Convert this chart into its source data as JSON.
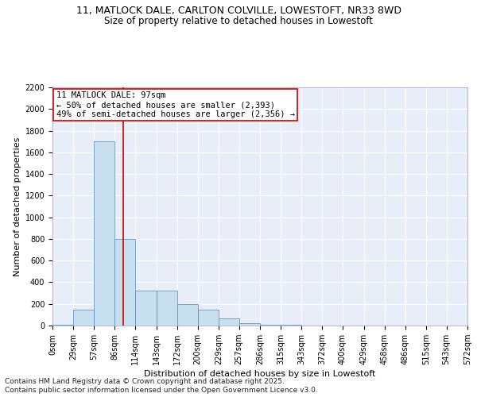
{
  "title": "11, MATLOCK DALE, CARLTON COLVILLE, LOWESTOFT, NR33 8WD",
  "subtitle": "Size of property relative to detached houses in Lowestoft",
  "xlabel": "Distribution of detached houses by size in Lowestoft",
  "ylabel": "Number of detached properties",
  "footer1": "Contains HM Land Registry data © Crown copyright and database right 2025.",
  "footer2": "Contains public sector information licensed under the Open Government Licence v3.0.",
  "bar_heights": [
    5,
    150,
    1700,
    800,
    320,
    320,
    200,
    150,
    65,
    25,
    10,
    5,
    3,
    2,
    1,
    0,
    0,
    0,
    0,
    0
  ],
  "bin_labels": [
    "0sqm",
    "29sqm",
    "57sqm",
    "86sqm",
    "114sqm",
    "143sqm",
    "172sqm",
    "200sqm",
    "229sqm",
    "257sqm",
    "286sqm",
    "315sqm",
    "343sqm",
    "372sqm",
    "400sqm",
    "429sqm",
    "458sqm",
    "486sqm",
    "515sqm",
    "543sqm",
    "572sqm"
  ],
  "bin_edges": [
    0,
    29,
    57,
    86,
    114,
    143,
    172,
    200,
    229,
    257,
    286,
    315,
    343,
    372,
    400,
    429,
    458,
    486,
    515,
    543,
    572
  ],
  "ylim": [
    0,
    2200
  ],
  "property_value": 97,
  "property_label": "11 MATLOCK DALE: 97sqm",
  "annotation_line1": "← 50% of detached houses are smaller (2,393)",
  "annotation_line2": "49% of semi-detached houses are larger (2,356) →",
  "bar_color": "#c8dff0",
  "bar_edge_color": "#5588bb",
  "line_color": "#cc0000",
  "annotation_box_color": "#cc0000",
  "bg_color": "#e8eef8",
  "grid_color": "#ffffff",
  "title_fontsize": 9,
  "subtitle_fontsize": 8.5,
  "ylabel_fontsize": 8,
  "xlabel_fontsize": 8,
  "tick_fontsize": 7,
  "annotation_fontsize": 7.5,
  "footer_fontsize": 6.5
}
